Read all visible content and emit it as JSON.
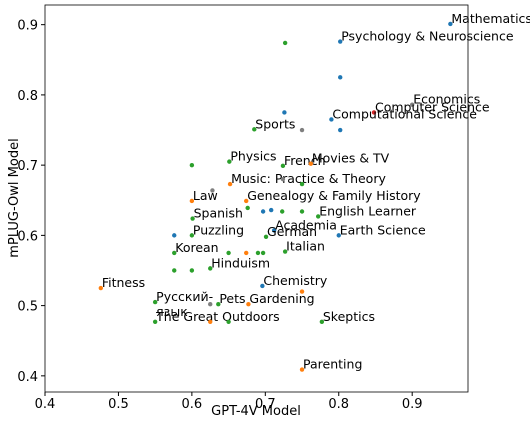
{
  "chart_data": {
    "type": "scatter",
    "xlabel": "GPT-4V Model",
    "ylabel": "mPLUG-Owl Model",
    "xlim": [
      0.4,
      0.976
    ],
    "ylim": [
      0.377,
      0.928
    ],
    "xticks": [
      0.4,
      0.5,
      0.6,
      0.7,
      0.8,
      0.9
    ],
    "yticks": [
      0.4,
      0.5,
      0.6,
      0.7,
      0.8,
      0.9
    ],
    "x": [
      0.952,
      0.802,
      0.9,
      0.848,
      0.79,
      0.685,
      0.651,
      0.724,
      0.762,
      0.652,
      0.6,
      0.674,
      0.601,
      0.772,
      0.712,
      0.6,
      0.701,
      0.8,
      0.576,
      0.727,
      0.625,
      0.696,
      0.476,
      0.55,
      0.636,
      0.677,
      0.55,
      0.777,
      0.75,
      0.727,
      0.802,
      0.726,
      0.802,
      0.75,
      0.6,
      0.724,
      0.75,
      0.576,
      0.628,
      0.676,
      0.697,
      0.708,
      0.723,
      0.75,
      0.674,
      0.69,
      0.697,
      0.65,
      0.6,
      0.576,
      0.75,
      0.625,
      0.65,
      0.625
    ],
    "values": [
      0.901,
      0.876,
      0.786,
      0.775,
      0.765,
      0.751,
      0.705,
      0.699,
      0.702,
      0.673,
      0.649,
      0.649,
      0.624,
      0.627,
      0.607,
      0.6,
      0.598,
      0.6,
      0.575,
      0.577,
      0.553,
      0.528,
      0.525,
      0.505,
      0.502,
      0.502,
      0.477,
      0.477,
      0.409,
      0.874,
      0.825,
      0.775,
      0.75,
      0.75,
      0.7,
      0.68,
      0.673,
      0.6,
      0.664,
      0.639,
      0.634,
      0.636,
      0.634,
      0.634,
      0.575,
      0.575,
      0.575,
      0.575,
      0.55,
      0.55,
      0.52,
      0.477,
      0.477,
      0.502
    ],
    "colors": [
      "#1f77b4",
      "#1f77b4",
      "#7f7f7f",
      "#d62728",
      "#1f77b4",
      "#2ca02c",
      "#2ca02c",
      "#2ca02c",
      "#ff7f0e",
      "#ff7f0e",
      "#ff7f0e",
      "#ff7f0e",
      "#2ca02c",
      "#2ca02c",
      "#1f77b4",
      "#2ca02c",
      "#2ca02c",
      "#1f77b4",
      "#2ca02c",
      "#2ca02c",
      "#2ca02c",
      "#1f77b4",
      "#ff7f0e",
      "#2ca02c",
      "#2ca02c",
      "#ff7f0e",
      "#2ca02c",
      "#2ca02c",
      "#ff7f0e",
      "#2ca02c",
      "#1f77b4",
      "#1f77b4",
      "#1f77b4",
      "#7f7f7f",
      "#2ca02c",
      "#7f7f7f",
      "#2ca02c",
      "#1f77b4",
      "#7f7f7f",
      "#2ca02c",
      "#1f77b4",
      "#1f77b4",
      "#2ca02c",
      "#2ca02c",
      "#ff7f0e",
      "#2ca02c",
      "#2ca02c",
      "#2ca02c",
      "#2ca02c",
      "#2ca02c",
      "#ff7f0e",
      "#ff7f0e",
      "#2ca02c",
      "#7f7f7f"
    ],
    "labels": [
      [
        "Mathematics"
      ],
      [
        "Psychology & Neuroscience"
      ],
      [
        "Economics"
      ],
      [
        "Computer Science"
      ],
      [
        "Computational Science"
      ],
      [
        "Sports"
      ],
      [
        "Physics"
      ],
      [
        "French"
      ],
      [
        "Movies & TV"
      ],
      [
        "Music: Practice & Theory"
      ],
      [
        "Law"
      ],
      [
        "Genealogy & Family History"
      ],
      [
        "Spanish"
      ],
      [
        "English Learner"
      ],
      [
        "Academia"
      ],
      [
        "Puzzling"
      ],
      [
        "German"
      ],
      [
        "Earth Science"
      ],
      [
        "Korean"
      ],
      [
        "Italian"
      ],
      [
        "Hinduism"
      ],
      [
        "Chemistry"
      ],
      [
        "Fitness"
      ],
      [
        "Русский-",
        "язык"
      ],
      [
        "Pets"
      ],
      [
        "Gardening"
      ],
      [
        "The Great Outdoors"
      ],
      [
        "Skeptics"
      ],
      [
        "Parenting"
      ],
      null,
      null,
      null,
      null,
      null,
      null,
      null,
      null,
      null,
      null,
      null,
      null,
      null,
      null,
      null,
      null,
      null,
      null,
      null,
      null,
      null,
      null,
      null,
      null,
      null
    ]
  }
}
